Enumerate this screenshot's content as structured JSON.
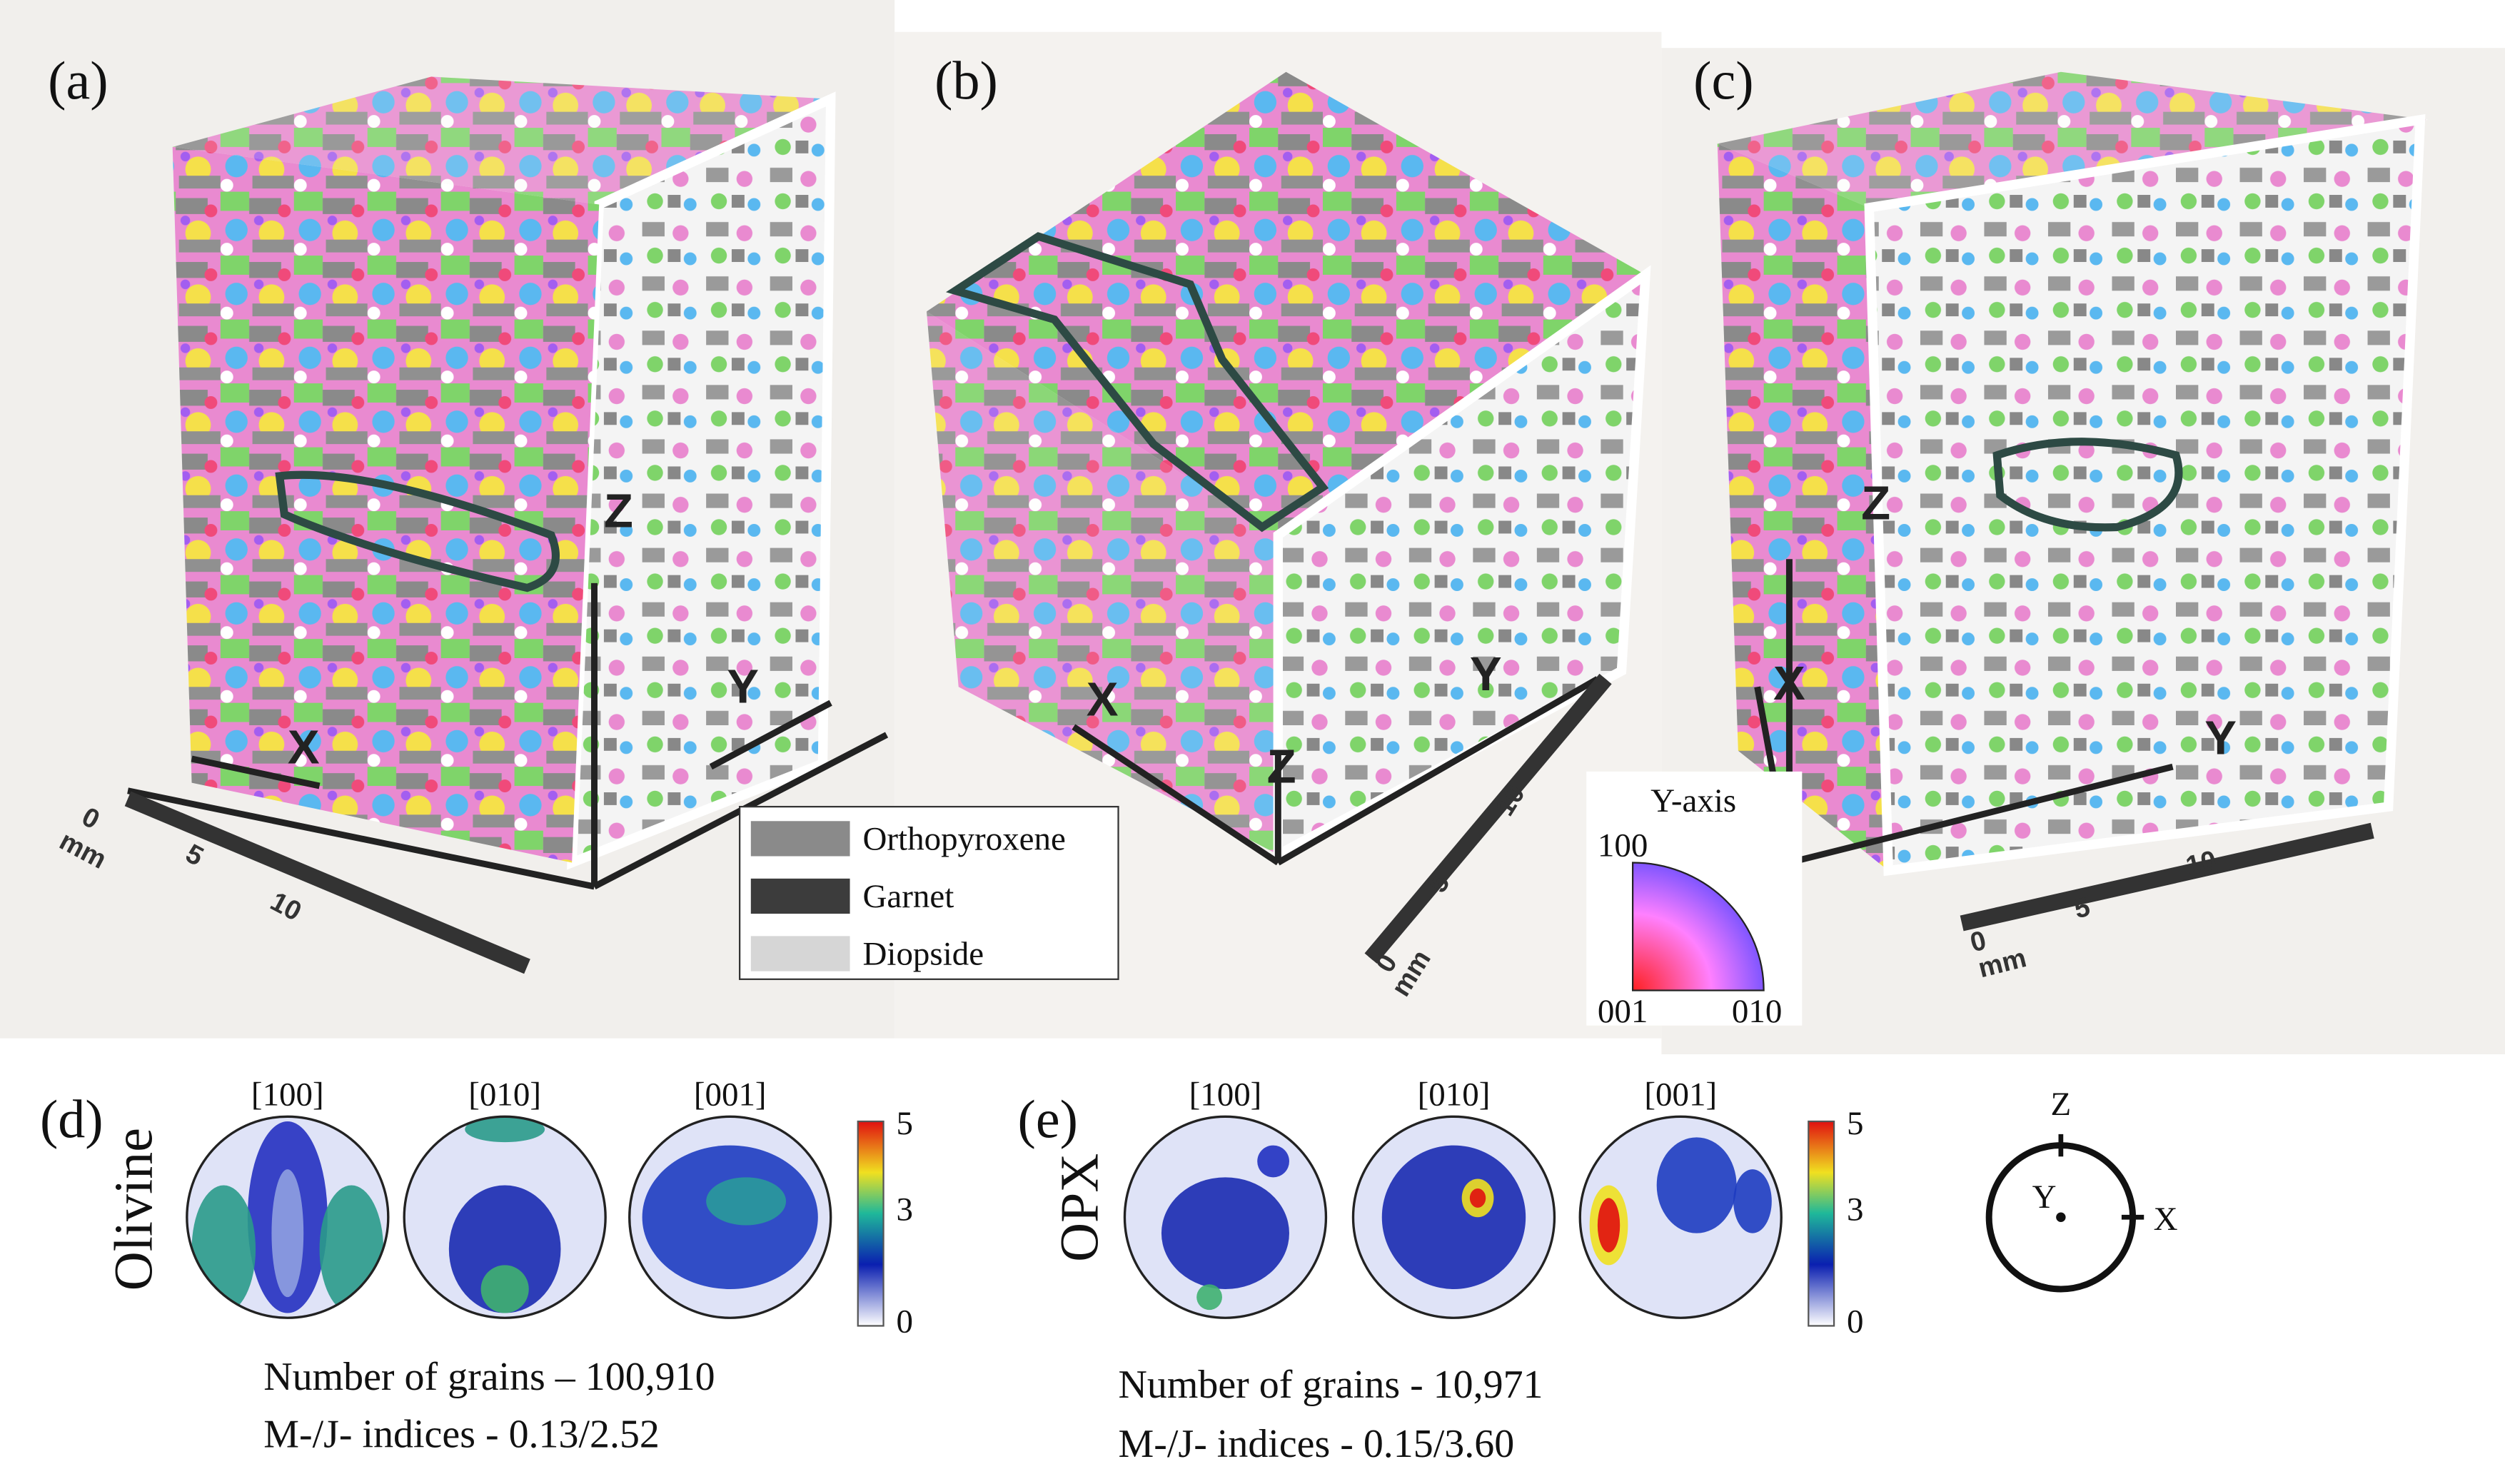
{
  "panels": [
    {
      "label": "(a)",
      "axes": {
        "x": "X",
        "y": "Y",
        "z": "Z"
      },
      "scale": {
        "ticks": [
          "0",
          "5",
          "10"
        ],
        "unit": "mm"
      }
    },
    {
      "label": "(b)",
      "axes": {
        "x": "X",
        "y": "Y",
        "z": "Z"
      },
      "scale": {
        "ticks": [
          "0",
          "5",
          "10"
        ],
        "unit": "mm"
      }
    },
    {
      "label": "(c)",
      "axes": {
        "x": "X",
        "y": "Y",
        "z": "Z"
      },
      "scale": {
        "ticks": [
          "0",
          "5",
          "10"
        ],
        "unit": "mm"
      }
    }
  ],
  "legend": {
    "phases": [
      "Orthopyroxene",
      "Garnet",
      "Diopside"
    ]
  },
  "ipf_key": {
    "title": "Y-axis",
    "corners": [
      "100",
      "001",
      "010"
    ]
  },
  "pole_figures": [
    {
      "label": "(d)",
      "mineral": "Olivine",
      "directions": [
        "[100]",
        "[010]",
        "[001]"
      ],
      "colorbar": [
        "5",
        "3",
        "0"
      ],
      "stats": [
        "Number of grains – 100,910",
        "M-/J- indices - 0.13/2.52"
      ]
    },
    {
      "label": "(e)",
      "mineral": "OPX",
      "directions": [
        "[100]",
        "[010]",
        "[001]"
      ],
      "colorbar": [
        "5",
        "3",
        "0"
      ],
      "stats": [
        "Number of grains -  10,971",
        "M-/J- indices -  0.15/3.60"
      ]
    }
  ],
  "reference": {
    "axes": [
      "Z",
      "Y",
      "X"
    ]
  }
}
